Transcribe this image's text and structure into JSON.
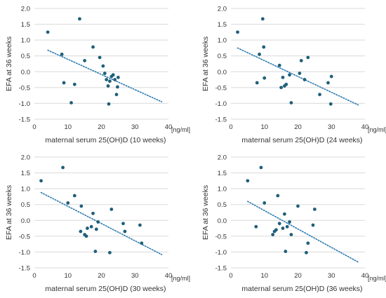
{
  "colors": {
    "point": "#1f5f7a",
    "trendline": "#2a7ab0",
    "gridline": "#d9d9d9",
    "text": "#333333"
  },
  "chart_data": [
    {
      "type": "scatter",
      "xlabel": "maternal serum 25(OH)D (10 weeks)",
      "ylabel": "EFA at 36 weeks",
      "x_unit": "[ng/ml]",
      "xlim": [
        0,
        40
      ],
      "ylim": [
        -1.5,
        2.0
      ],
      "x_ticks": [
        "0",
        "10",
        "20",
        "30",
        "40"
      ],
      "y_ticks": [
        "2.0",
        "1.5",
        "1.0",
        "0.5",
        "0.0",
        "-0.5",
        "-1.0",
        "-1.5"
      ],
      "grid": "horizontal",
      "trendline": {
        "style": "dotted",
        "x": [
          4,
          38
        ],
        "y": [
          0.68,
          -0.95
        ]
      },
      "points": [
        {
          "x": 4,
          "y": 1.25
        },
        {
          "x": 8.2,
          "y": 0.55
        },
        {
          "x": 8.8,
          "y": -0.35
        },
        {
          "x": 11,
          "y": -0.98
        },
        {
          "x": 12,
          "y": -0.4
        },
        {
          "x": 13.5,
          "y": 1.67
        },
        {
          "x": 15,
          "y": 0.35
        },
        {
          "x": 17.5,
          "y": 0.78
        },
        {
          "x": 19.5,
          "y": 0.45
        },
        {
          "x": 20.5,
          "y": 0.18
        },
        {
          "x": 21,
          "y": -0.05
        },
        {
          "x": 21.5,
          "y": -0.25
        },
        {
          "x": 22,
          "y": -0.45
        },
        {
          "x": 22.2,
          "y": -1.02
        },
        {
          "x": 22.5,
          "y": -0.3
        },
        {
          "x": 23,
          "y": -0.15
        },
        {
          "x": 23.5,
          "y": -0.1
        },
        {
          "x": 24,
          "y": -0.25
        },
        {
          "x": 24.5,
          "y": -0.72
        },
        {
          "x": 24.8,
          "y": -0.48
        },
        {
          "x": 25,
          "y": -0.18
        }
      ]
    },
    {
      "type": "scatter",
      "xlabel": "maternal serum 25(OH)D (24 weeks)",
      "ylabel": "EFA at 36 weeks",
      "x_unit": "[ng/ml]",
      "xlim": [
        0,
        40
      ],
      "ylim": [
        -1.5,
        2.0
      ],
      "x_ticks": [
        "0",
        "10",
        "20",
        "30",
        "40"
      ],
      "y_ticks": [
        "2.0",
        "1.5",
        "1.0",
        "0.5",
        "0.0",
        "-0.5",
        "-1.0",
        "-1.5"
      ],
      "grid": "horizontal",
      "trendline": {
        "style": "dotted",
        "x": [
          2,
          38
        ],
        "y": [
          0.75,
          -1.05
        ]
      },
      "points": [
        {
          "x": 2,
          "y": 1.25
        },
        {
          "x": 7.8,
          "y": -0.35
        },
        {
          "x": 8.5,
          "y": 0.55
        },
        {
          "x": 9.5,
          "y": 1.67
        },
        {
          "x": 9.8,
          "y": 0.78
        },
        {
          "x": 10,
          "y": -0.2
        },
        {
          "x": 14.5,
          "y": 0.2
        },
        {
          "x": 15,
          "y": -0.5
        },
        {
          "x": 15.5,
          "y": -0.18
        },
        {
          "x": 16,
          "y": -0.45
        },
        {
          "x": 16.5,
          "y": -0.4
        },
        {
          "x": 17.5,
          "y": -0.1
        },
        {
          "x": 18,
          "y": -0.98
        },
        {
          "x": 20.5,
          "y": -0.05
        },
        {
          "x": 21,
          "y": 0.35
        },
        {
          "x": 22,
          "y": -0.25
        },
        {
          "x": 23,
          "y": 0.45
        },
        {
          "x": 26.5,
          "y": -0.72
        },
        {
          "x": 29,
          "y": -0.35
        },
        {
          "x": 29.8,
          "y": -1.02
        },
        {
          "x": 30,
          "y": -0.15
        }
      ]
    },
    {
      "type": "scatter",
      "xlabel": "maternal serum 25(OH)D (30 weeks)",
      "ylabel": "EFA at 36 weeks",
      "x_unit": "[ng/ml]",
      "xlim": [
        0,
        40
      ],
      "ylim": [
        -1.5,
        2.0
      ],
      "x_ticks": [
        "0",
        "10",
        "20",
        "30",
        "40"
      ],
      "y_ticks": [
        "2.0",
        "1.5",
        "1.0",
        "0.5",
        "0.0",
        "-0.5",
        "-1.0",
        "-1.5"
      ],
      "grid": "horizontal",
      "trendline": {
        "style": "dotted",
        "x": [
          2,
          38
        ],
        "y": [
          0.88,
          -1.08
        ]
      },
      "points": [
        {
          "x": 2,
          "y": 1.25
        },
        {
          "x": 8.5,
          "y": 1.67
        },
        {
          "x": 10,
          "y": 0.55
        },
        {
          "x": 12,
          "y": 0.78
        },
        {
          "x": 13.8,
          "y": -0.35
        },
        {
          "x": 14,
          "y": 0.45
        },
        {
          "x": 15,
          "y": -0.45
        },
        {
          "x": 15.5,
          "y": -0.5
        },
        {
          "x": 15.8,
          "y": -0.25
        },
        {
          "x": 17,
          "y": -0.2
        },
        {
          "x": 17.5,
          "y": 0.22
        },
        {
          "x": 18.2,
          "y": -0.98
        },
        {
          "x": 18.5,
          "y": -0.28
        },
        {
          "x": 19,
          "y": -0.05
        },
        {
          "x": 22.5,
          "y": -1.02
        },
        {
          "x": 23,
          "y": 0.35
        },
        {
          "x": 26.5,
          "y": -0.1
        },
        {
          "x": 27,
          "y": -0.35
        },
        {
          "x": 31.5,
          "y": -0.15
        },
        {
          "x": 32,
          "y": -0.72
        }
      ]
    },
    {
      "type": "scatter",
      "xlabel": "maternal serum 25(OH)D (36 weeks)",
      "ylabel": "EFA at 36 weeks",
      "x_unit": "[ng/ml]",
      "xlim": [
        0,
        40
      ],
      "ylim": [
        -1.5,
        2.0
      ],
      "x_ticks": [
        "0",
        "10",
        "20",
        "30",
        "40"
      ],
      "y_ticks": [
        "2.0",
        "1.5",
        "1.0",
        "0.5",
        "0.0",
        "-0.5",
        "-1.0",
        "-1.5"
      ],
      "grid": "horizontal",
      "trendline": {
        "style": "dotted",
        "x": [
          5,
          38
        ],
        "y": [
          0.6,
          -1.32
        ]
      },
      "points": [
        {
          "x": 5,
          "y": 1.25
        },
        {
          "x": 7.5,
          "y": -0.2
        },
        {
          "x": 9,
          "y": 1.67
        },
        {
          "x": 10,
          "y": 0.55
        },
        {
          "x": 12.5,
          "y": -0.45
        },
        {
          "x": 13,
          "y": -0.35
        },
        {
          "x": 13.5,
          "y": -0.3
        },
        {
          "x": 14,
          "y": 0.78
        },
        {
          "x": 14.5,
          "y": -0.1
        },
        {
          "x": 15.5,
          "y": -0.25
        },
        {
          "x": 16,
          "y": 0.2
        },
        {
          "x": 16.3,
          "y": -0.98
        },
        {
          "x": 16.8,
          "y": -0.2
        },
        {
          "x": 17.5,
          "y": -0.05
        },
        {
          "x": 18,
          "y": -0.45
        },
        {
          "x": 20,
          "y": 0.45
        },
        {
          "x": 22.5,
          "y": -1.02
        },
        {
          "x": 23,
          "y": -0.72
        },
        {
          "x": 24.5,
          "y": -0.15
        },
        {
          "x": 25,
          "y": 0.35
        }
      ]
    }
  ]
}
